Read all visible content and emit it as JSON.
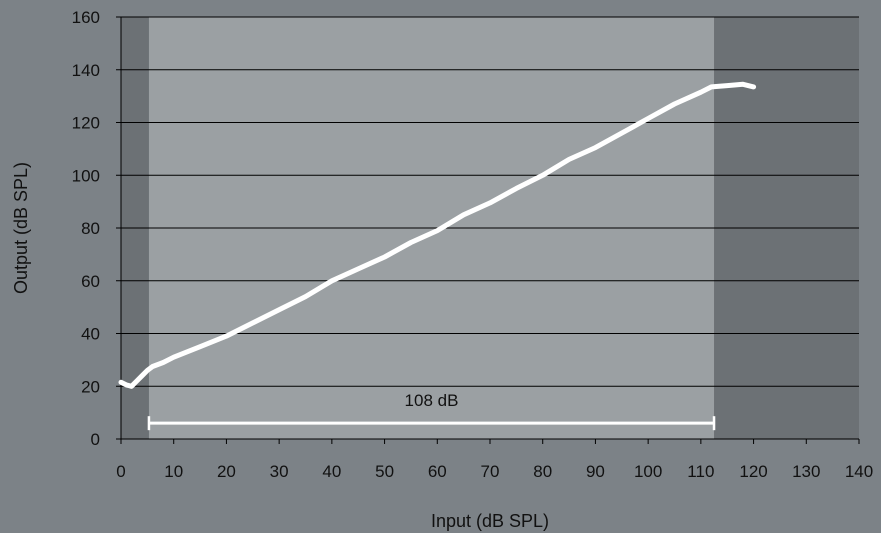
{
  "chart_data": {
    "type": "line",
    "xlabel": "Input (dB SPL)",
    "ylabel": "Output (dB SPL)",
    "xlim": [
      0,
      140
    ],
    "ylim": [
      0,
      160
    ],
    "xticks": [
      0,
      10,
      20,
      30,
      40,
      50,
      60,
      70,
      80,
      90,
      100,
      110,
      120,
      130,
      140
    ],
    "yticks": [
      0,
      20,
      40,
      60,
      80,
      100,
      120,
      140,
      160
    ],
    "grid": "horizontal",
    "highlight_region_x": [
      5.3,
      112.5
    ],
    "series": [
      {
        "color": "#ffffff",
        "x": [
          0,
          1,
          2,
          3,
          4,
          5,
          6,
          8,
          10,
          15,
          20,
          25,
          30,
          35,
          40,
          45,
          50,
          55,
          60,
          65,
          70,
          75,
          80,
          85,
          90,
          95,
          100,
          105,
          110,
          112,
          115,
          118,
          120
        ],
        "y": [
          21.5,
          20.5,
          20,
          22,
          24,
          26,
          27.5,
          29,
          31,
          35,
          39,
          44,
          49,
          54,
          60,
          64.5,
          69,
          74.5,
          79,
          85,
          89.5,
          95,
          100,
          106,
          110.5,
          116,
          121.5,
          127,
          131.5,
          133.5,
          134,
          134.5,
          133.5
        ]
      }
    ],
    "annotations": [
      {
        "text": "108 dB",
        "x_range": [
          5.3,
          112.5
        ],
        "y": 6
      }
    ]
  }
}
